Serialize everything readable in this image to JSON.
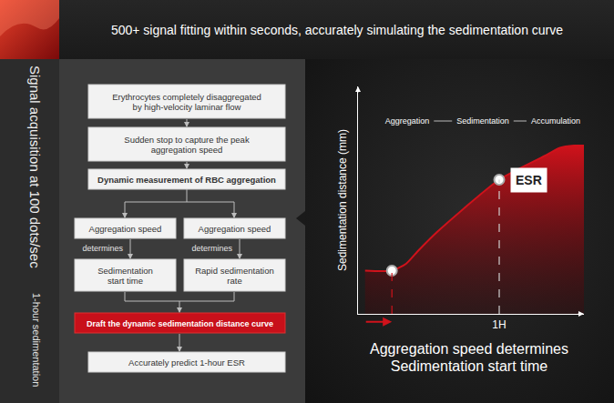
{
  "header": {
    "title": "500+ signal fitting within seconds, accurately simulating the sedimentation curve"
  },
  "sidebar": {
    "main": "Signal acquisition at 100 dots/sec",
    "sub": "1-hour sedimentation"
  },
  "flowchart": {
    "nodes": [
      {
        "lines": [
          "Erythrocytes completely disaggregated",
          "by high-velocity laminar flow"
        ]
      },
      {
        "lines": [
          "Sudden stop to capture the peak",
          "aggregation speed"
        ]
      },
      {
        "lines": [
          "Dynamic measurement of RBC aggregation"
        ]
      },
      {
        "lines": [
          "Aggregation speed"
        ]
      },
      {
        "lines": [
          "Aggregation speed"
        ]
      },
      {
        "lines": [
          "Sedimentation",
          "start time"
        ]
      },
      {
        "lines": [
          "Rapid sedimentation",
          "rate"
        ]
      },
      {
        "lines": [
          "Draft the dynamic sedimentation distance curve"
        ]
      },
      {
        "lines": [
          "Accurately predict 1-hour ESR"
        ]
      }
    ],
    "edge_label": "determines"
  },
  "chart_data": {
    "type": "area",
    "y_label": "Sedimentation distance (mm)",
    "phases": [
      "Aggregation",
      "Sedimentation",
      "Accumulation"
    ],
    "x": [
      0.05,
      0.24,
      0.34,
      0.43,
      0.56,
      1.0,
      1.34,
      1.43,
      1.53,
      1.6
    ],
    "values": [
      19,
      19,
      22,
      28,
      36,
      59,
      70,
      73,
      74,
      74
    ],
    "color": "#d0121b",
    "xlim": [
      0,
      1.6
    ],
    "ylim": [
      0,
      100
    ],
    "xticks": [
      {
        "value": 1,
        "label": "1H"
      }
    ],
    "yticks": [],
    "tick_labels": "x",
    "grid": false,
    "points": [
      {
        "x": 0.24,
        "y": 19
      },
      {
        "x": 1,
        "y": 59,
        "label": "ESR"
      }
    ],
    "caption": [
      "Aggregation speed determines",
      "Sedimentation start time"
    ]
  }
}
